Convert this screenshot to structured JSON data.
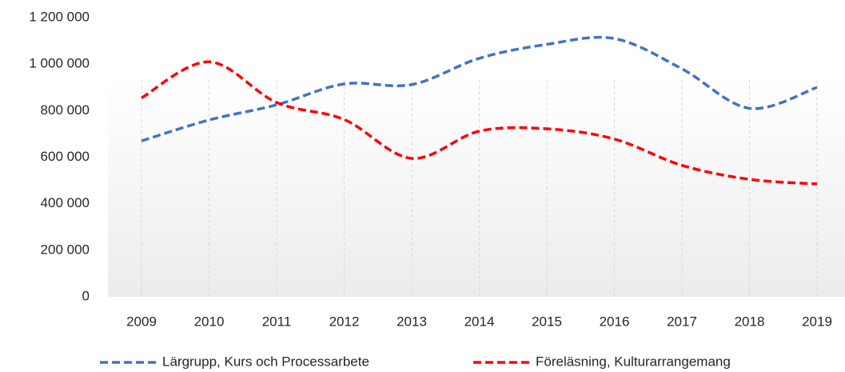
{
  "chart_data": {
    "type": "line",
    "categories": [
      "2009",
      "2010",
      "2011",
      "2012",
      "2013",
      "2014",
      "2015",
      "2016",
      "2017",
      "2018",
      "2019"
    ],
    "series": [
      {
        "name": "Lärgrupp, Kurs och Processarbete",
        "color": "#4472c4",
        "values": [
          670000,
          760000,
          825000,
          915000,
          912000,
          1025000,
          1085000,
          1110000,
          980000,
          810000,
          900000
        ]
      },
      {
        "name": "Föreläsning, Kulturarrangemang",
        "color": "#ff0000",
        "values": [
          855000,
          1010000,
          835000,
          762000,
          595000,
          712000,
          722000,
          678000,
          565000,
          505000,
          485000
        ]
      }
    ],
    "ylim": [
      0,
      1200000
    ],
    "yticks": [
      0,
      {
        "value": 200000,
        "label": "200 000"
      },
      {
        "value": 400000,
        "label": "400 000"
      },
      {
        "value": 600000,
        "label": "600 000"
      },
      {
        "value": 800000,
        "label": "800 000"
      },
      {
        "value": 1000000,
        "label": "1 000 000"
      },
      {
        "value": 1200000,
        "label": "1 200 000"
      }
    ],
    "xgrid": true,
    "smooth": true,
    "dashed": true,
    "legend": "bottom"
  }
}
